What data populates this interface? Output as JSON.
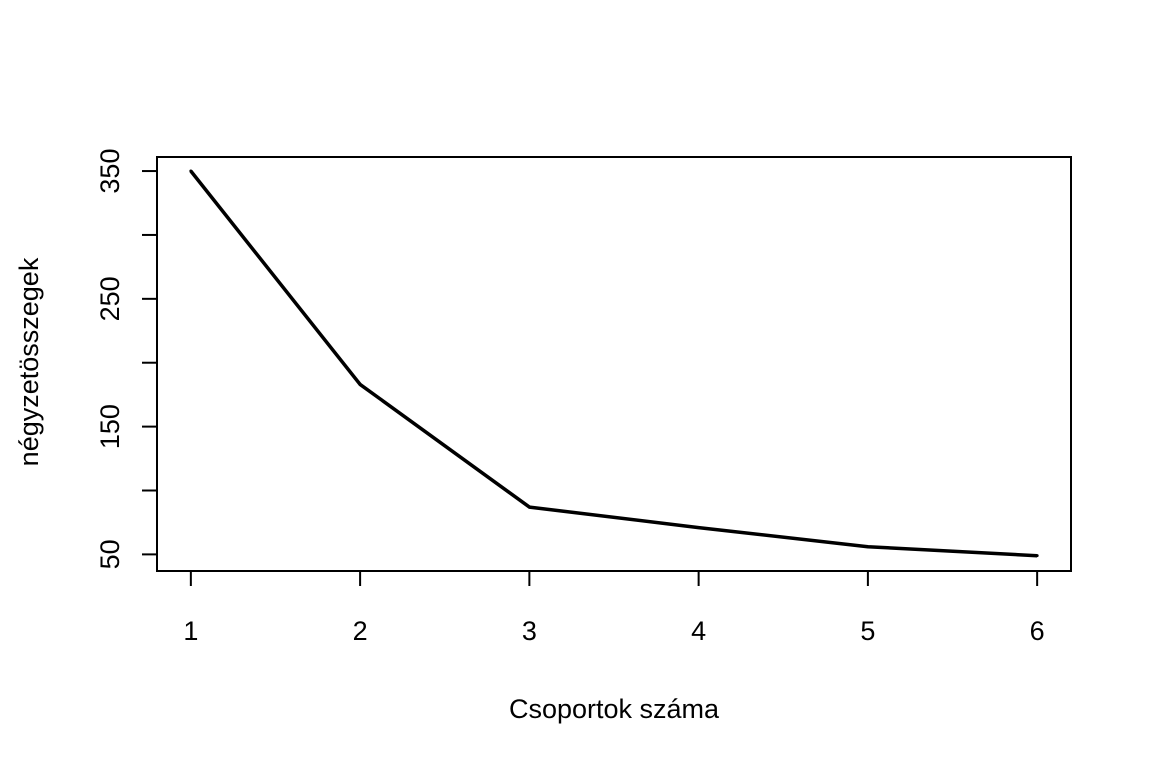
{
  "chart_data": {
    "type": "line",
    "title": "",
    "xlabel": "Csoportok száma",
    "ylabel": "négyzetösszegek",
    "x": [
      1,
      2,
      3,
      4,
      5,
      6
    ],
    "series": [
      {
        "values": [
          350,
          183,
          87,
          71,
          56,
          49
        ]
      }
    ],
    "xticks": [
      "1",
      "2",
      "3",
      "4",
      "5",
      "6"
    ],
    "yticks": [
      "50",
      "150",
      "250",
      "350"
    ],
    "yminor_ticks": [
      100,
      200,
      300
    ],
    "xlim": [
      0.8,
      6.2
    ],
    "ylim": [
      37,
      361
    ],
    "grid": false,
    "line_color": "#000000"
  }
}
